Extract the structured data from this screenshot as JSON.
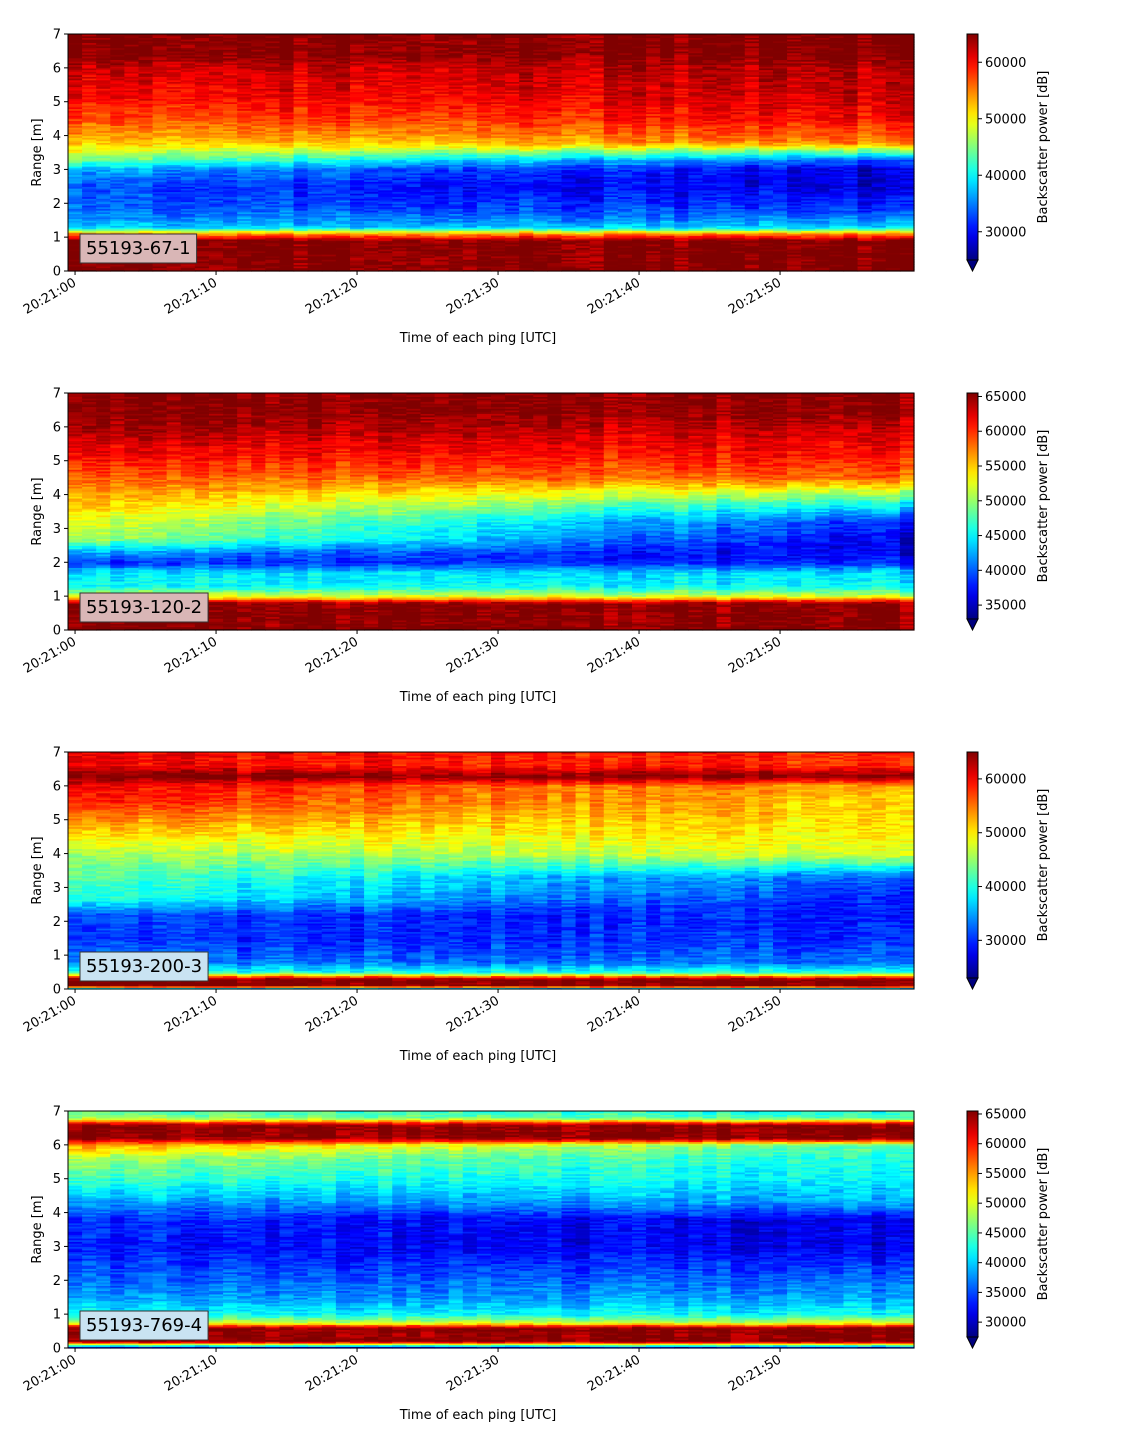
{
  "chart_data": [
    {
      "type": "heatmap",
      "tag": "55193-67-1",
      "tag_bg": "#d9b6b6",
      "xlabel": "Time of each ping [UTC]",
      "ylabel": "Range [m]",
      "xticks": [
        "20:21:00",
        "20:21:10",
        "20:21:20",
        "20:21:30",
        "20:21:40",
        "20:21:50"
      ],
      "xtick_seconds": [
        0,
        10,
        20,
        30,
        40,
        50
      ],
      "xlim_seconds": [
        -0.5,
        59.5
      ],
      "yticks": [
        0,
        1,
        2,
        3,
        4,
        5,
        6,
        7
      ],
      "ylim": [
        0,
        7
      ],
      "colorbar_label": "Backscatter power [dB]",
      "colorbar_ticks": [
        30000,
        40000,
        50000,
        60000
      ],
      "clim": [
        25000,
        65000
      ],
      "colormap": "jet",
      "colorbar_extend": "min",
      "profile": {
        "range_m": [
          0.0,
          0.25,
          0.5,
          0.9,
          1.1,
          1.3,
          1.8,
          2.5,
          3.0,
          3.3,
          3.8,
          4.5,
          5.2,
          6.0,
          6.4,
          7.0
        ],
        "start": [
          65000,
          65000,
          65000,
          65000,
          55000,
          38000,
          34000,
          33000,
          37000,
          45000,
          52000,
          57000,
          60000,
          62000,
          65000,
          65000
        ],
        "end": [
          65000,
          65000,
          65000,
          65000,
          55000,
          38000,
          32000,
          28000,
          28000,
          33000,
          55000,
          60000,
          62000,
          63000,
          65000,
          65000
        ]
      }
    },
    {
      "type": "heatmap",
      "tag": "55193-120-2",
      "tag_bg": "#d9b6b6",
      "xlabel": "Time of each ping [UTC]",
      "ylabel": "Range [m]",
      "xticks": [
        "20:21:00",
        "20:21:10",
        "20:21:20",
        "20:21:30",
        "20:21:40",
        "20:21:50"
      ],
      "xtick_seconds": [
        0,
        10,
        20,
        30,
        40,
        50
      ],
      "xlim_seconds": [
        -0.5,
        59.5
      ],
      "yticks": [
        0,
        1,
        2,
        3,
        4,
        5,
        6,
        7
      ],
      "ylim": [
        0,
        7
      ],
      "colorbar_label": "Backscatter power [dB]",
      "colorbar_ticks": [
        35000,
        40000,
        45000,
        50000,
        55000,
        60000,
        65000
      ],
      "clim": [
        33000,
        65500
      ],
      "colormap": "jet",
      "colorbar_extend": "min",
      "profile": {
        "range_m": [
          0.0,
          0.25,
          0.5,
          0.8,
          1.0,
          1.3,
          1.7,
          2.0,
          2.3,
          2.7,
          3.2,
          3.8,
          4.5,
          5.2,
          6.0,
          6.5,
          7.0
        ],
        "start": [
          65000,
          65000,
          65000,
          65000,
          52000,
          45000,
          44000,
          38000,
          42000,
          50000,
          52000,
          55000,
          58000,
          61000,
          64000,
          65000,
          65000
        ],
        "end": [
          65000,
          65000,
          65000,
          65000,
          52000,
          45000,
          44000,
          38000,
          36000,
          36000,
          38000,
          46000,
          58000,
          61000,
          63000,
          65000,
          65000
        ]
      }
    },
    {
      "type": "heatmap",
      "tag": "55193-200-3",
      "tag_bg": "#c9e3f2",
      "xlabel": "Time of each ping [UTC]",
      "ylabel": "Range [m]",
      "xticks": [
        "20:21:00",
        "20:21:10",
        "20:21:20",
        "20:21:30",
        "20:21:40",
        "20:21:50"
      ],
      "xtick_seconds": [
        0,
        10,
        20,
        30,
        40,
        50
      ],
      "xlim_seconds": [
        -0.5,
        59.5
      ],
      "yticks": [
        0,
        1,
        2,
        3,
        4,
        5,
        6,
        7
      ],
      "ylim": [
        0,
        7
      ],
      "colorbar_label": "Backscatter power [dB]",
      "colorbar_ticks": [
        30000,
        40000,
        50000,
        60000
      ],
      "clim": [
        23000,
        65000
      ],
      "colormap": "jet",
      "colorbar_extend": "min",
      "profile": {
        "range_m": [
          0.0,
          0.1,
          0.3,
          0.5,
          0.8,
          1.5,
          2.2,
          2.7,
          3.3,
          4.0,
          4.8,
          5.5,
          6.0,
          6.3,
          6.6,
          7.0
        ],
        "start": [
          28000,
          65000,
          65000,
          40000,
          33000,
          30000,
          31000,
          40000,
          42000,
          45000,
          52000,
          58000,
          60000,
          65000,
          60000,
          60000
        ],
        "end": [
          28000,
          65000,
          65000,
          40000,
          33000,
          30000,
          29000,
          29000,
          32000,
          48000,
          50000,
          51000,
          52000,
          65000,
          58000,
          58000
        ]
      }
    },
    {
      "type": "heatmap",
      "tag": "55193-769-4",
      "tag_bg": "#c9e3f2",
      "xlabel": "Time of each ping [UTC]",
      "ylabel": "Range [m]",
      "xticks": [
        "20:21:00",
        "20:21:10",
        "20:21:20",
        "20:21:30",
        "20:21:40",
        "20:21:50"
      ],
      "xtick_seconds": [
        0,
        10,
        20,
        30,
        40,
        50
      ],
      "xlim_seconds": [
        -0.5,
        59.5
      ],
      "yticks": [
        0,
        1,
        2,
        3,
        4,
        5,
        6,
        7
      ],
      "ylim": [
        0,
        7
      ],
      "colorbar_label": "Backscatter power [dB]",
      "colorbar_ticks": [
        30000,
        35000,
        40000,
        45000,
        50000,
        55000,
        60000,
        65000
      ],
      "clim": [
        27500,
        65500
      ],
      "colormap": "jet",
      "colorbar_extend": "min",
      "profile": {
        "range_m": [
          0.0,
          0.2,
          0.6,
          0.75,
          1.0,
          1.5,
          2.0,
          3.0,
          3.8,
          4.3,
          5.0,
          5.6,
          6.0,
          6.2,
          6.6,
          6.8,
          7.0
        ],
        "start": [
          28000,
          65000,
          65000,
          50000,
          42000,
          38000,
          36000,
          33000,
          34000,
          38000,
          44000,
          48000,
          55000,
          65000,
          65000,
          48000,
          45000
        ],
        "end": [
          28000,
          65000,
          65000,
          50000,
          42000,
          38000,
          36000,
          31000,
          31000,
          38000,
          41000,
          42000,
          44000,
          65000,
          65000,
          44000,
          42000
        ]
      }
    }
  ]
}
